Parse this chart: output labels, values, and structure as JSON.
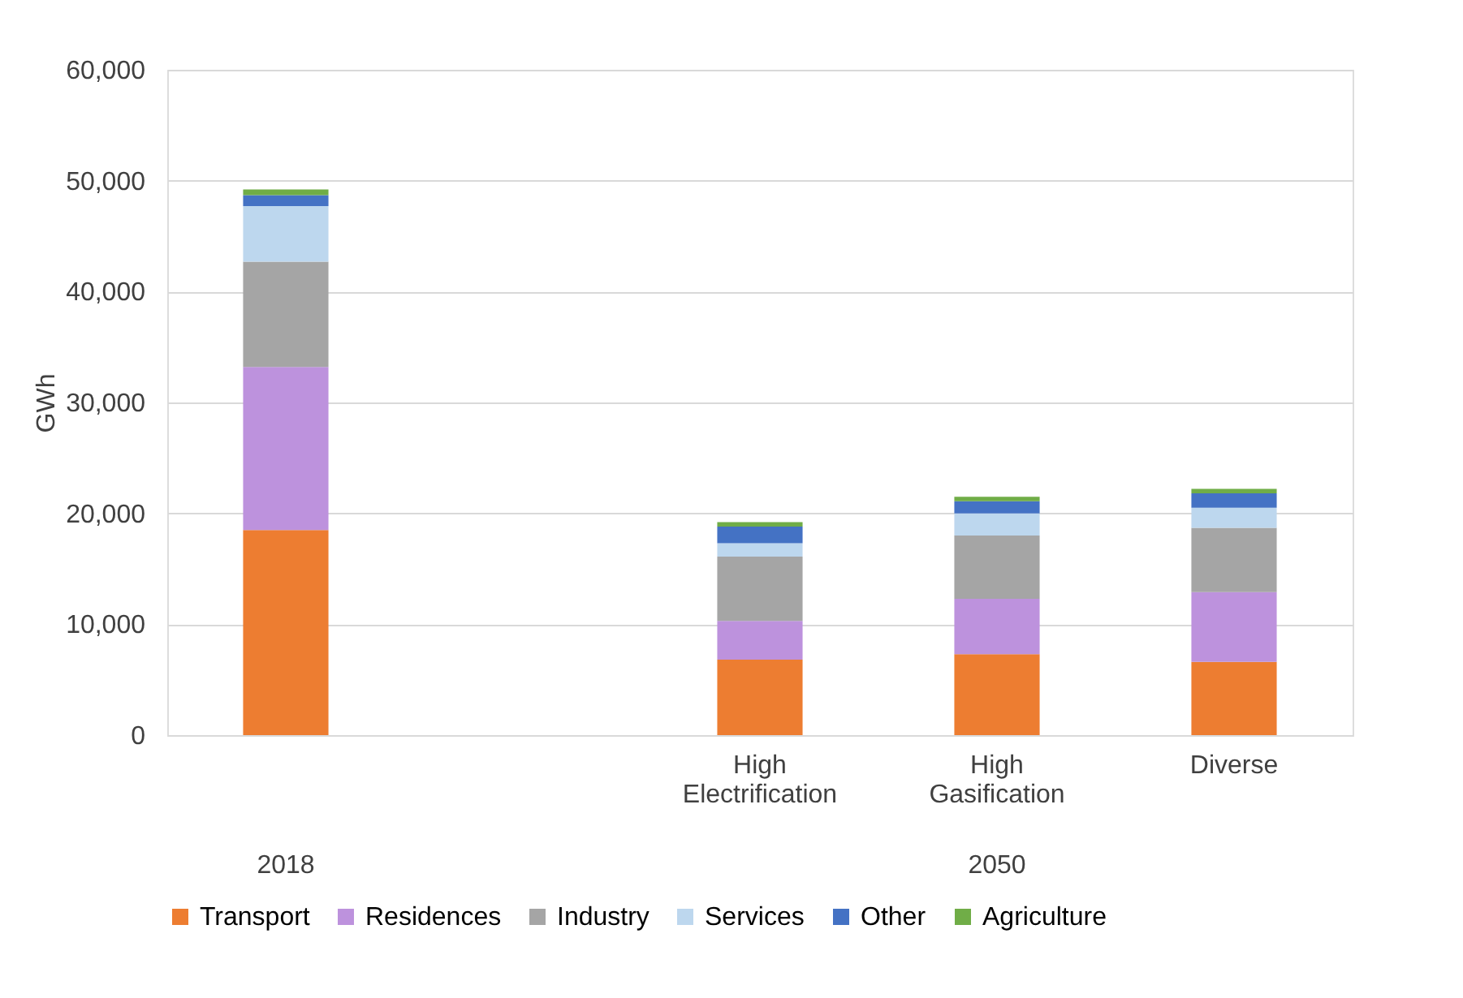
{
  "chart_data": {
    "type": "bar",
    "stacked": true,
    "ylabel": "GWh",
    "categories": [
      null,
      null,
      "High Electrification",
      "High Gasification",
      "Diverse"
    ],
    "series": [
      {
        "name": "Transport",
        "color": "#ed7d31",
        "values": [
          18500,
          null,
          6800,
          7300,
          6600
        ]
      },
      {
        "name": "Residences",
        "color": "#bd92dd",
        "values": [
          14700,
          null,
          3500,
          5000,
          6300
        ]
      },
      {
        "name": "Industry",
        "color": "#a5a5a5",
        "values": [
          9500,
          null,
          5800,
          5700,
          5800
        ]
      },
      {
        "name": "Services",
        "color": "#bdd7ee",
        "values": [
          5000,
          null,
          1200,
          2000,
          1800
        ]
      },
      {
        "name": "Other",
        "color": "#4472c4",
        "values": [
          1000,
          null,
          1500,
          1100,
          1300
        ]
      },
      {
        "name": "Agriculture",
        "color": "#70ad47",
        "values": [
          500,
          null,
          400,
          400,
          400
        ]
      }
    ],
    "ylim": [
      0,
      60000
    ],
    "yticks": [
      0,
      {
        "value": 10000,
        "label": "10,000"
      },
      {
        "value": 20000,
        "label": "20,000"
      },
      {
        "value": 30000,
        "label": "30,000"
      },
      {
        "value": 40000,
        "label": "40,000"
      },
      {
        "value": 50000,
        "label": "50,000"
      },
      {
        "value": 60000,
        "label": "60,000"
      }
    ],
    "grid": "y",
    "legend": "bottom",
    "annotations": [
      "2018",
      "2050"
    ]
  }
}
